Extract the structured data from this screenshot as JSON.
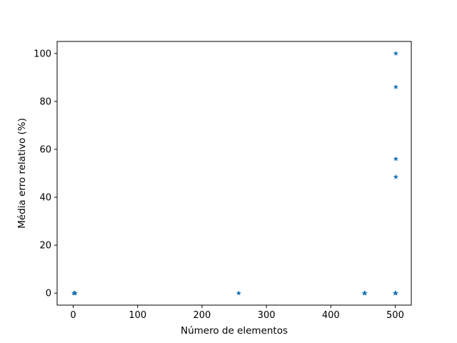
{
  "chart_data": {
    "type": "scatter",
    "title": "",
    "xlabel": "Número de elementos",
    "ylabel": "Média erro relativo (%)",
    "xlim": [
      -25,
      525
    ],
    "ylim": [
      -5,
      105
    ],
    "xticks": [
      0,
      100,
      200,
      300,
      400,
      500
    ],
    "yticks": [
      0,
      20,
      40,
      60,
      80,
      100
    ],
    "xtick_labels": [
      "0",
      "100",
      "200",
      "300",
      "400",
      "500"
    ],
    "ytick_labels": [
      "0",
      "20",
      "40",
      "60",
      "80",
      "100"
    ],
    "grid": false,
    "marker": "*",
    "color": "#1f77b4",
    "points": [
      {
        "x": 1,
        "y": 0
      },
      {
        "x": 2,
        "y": 0
      },
      {
        "x": 3,
        "y": 0
      },
      {
        "x": 257,
        "y": 0
      },
      {
        "x": 452,
        "y": 0
      },
      {
        "x": 453,
        "y": 0
      },
      {
        "x": 500,
        "y": 0
      },
      {
        "x": 501,
        "y": 0
      },
      {
        "x": 501,
        "y": 48.5
      },
      {
        "x": 501,
        "y": 56
      },
      {
        "x": 501,
        "y": 86
      },
      {
        "x": 501,
        "y": 100
      }
    ]
  }
}
